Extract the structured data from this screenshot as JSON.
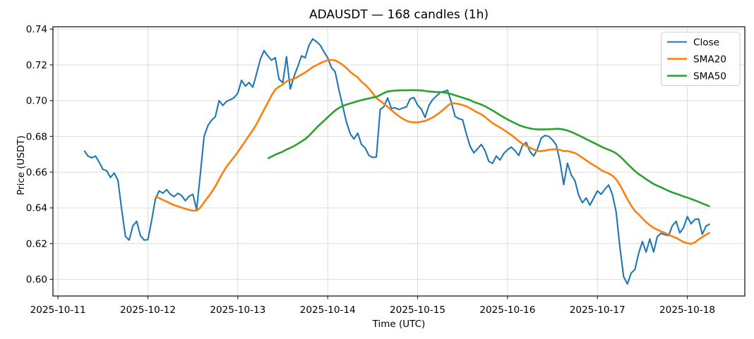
{
  "chart_data": {
    "type": "line",
    "title": "ADAUSDT — 168 candles (1h)",
    "xlabel": "Time (UTC)",
    "ylabel": "Price (USDT)",
    "symbol": "ADAUSDT",
    "candle_count": 168,
    "interval": "1h",
    "grid": true,
    "legend_position": "upper right",
    "x_start": "2025-10-11 07:00",
    "x_step_hours": 1,
    "x_tick_labels": [
      "2025-10-11",
      "2025-10-12",
      "2025-10-13",
      "2025-10-14",
      "2025-10-15",
      "2025-10-16",
      "2025-10-17",
      "2025-10-18"
    ],
    "x_ticks_hours": [
      -7,
      17,
      41,
      65,
      89,
      113,
      137,
      161
    ],
    "xlim_hours": [
      -8.35,
      176.35
    ],
    "y_tick_labels": [
      "0.60",
      "0.62",
      "0.64",
      "0.66",
      "0.68",
      "0.70",
      "0.72",
      "0.74"
    ],
    "y_ticks": [
      0.6,
      0.62,
      0.64,
      0.66,
      0.68,
      0.7,
      0.72,
      0.74
    ],
    "ylim": [
      0.5907,
      0.7413
    ],
    "style": {
      "background": "#ffffff",
      "grid_color": "#dcdcdc",
      "spine_color": "#2b2b2b",
      "text_color": "#000000",
      "legend_border": "#cccccc",
      "legend_bg": "#ffffff"
    },
    "series": [
      {
        "name": "Close",
        "color": "#1f77b4",
        "line_width": 2.1,
        "values": [
          0.672,
          0.669,
          0.668,
          0.669,
          0.6655,
          0.6615,
          0.6608,
          0.657,
          0.6595,
          0.6555,
          0.639,
          0.624,
          0.622,
          0.63,
          0.6325,
          0.6245,
          0.622,
          0.6222,
          0.633,
          0.645,
          0.6495,
          0.6482,
          0.6502,
          0.6476,
          0.6463,
          0.6482,
          0.6469,
          0.644,
          0.6465,
          0.6476,
          0.639,
          0.659,
          0.68,
          0.686,
          0.689,
          0.691,
          0.7,
          0.6973,
          0.6996,
          0.7005,
          0.7016,
          0.7042,
          0.7114,
          0.7081,
          0.7101,
          0.7075,
          0.715,
          0.723,
          0.728,
          0.725,
          0.7226,
          0.724,
          0.712,
          0.71,
          0.7246,
          0.7065,
          0.7135,
          0.719,
          0.725,
          0.724,
          0.731,
          0.7345,
          0.733,
          0.731,
          0.7273,
          0.724,
          0.7185,
          0.716,
          0.706,
          0.697,
          0.688,
          0.6815,
          0.6785,
          0.6818,
          0.6755,
          0.6735,
          0.6693,
          0.6682,
          0.6685,
          0.695,
          0.6966,
          0.7015,
          0.6956,
          0.696,
          0.695,
          0.6958,
          0.6965,
          0.701,
          0.7017,
          0.6975,
          0.6952,
          0.6906,
          0.6972,
          0.7005,
          0.7025,
          0.7045,
          0.7051,
          0.7058,
          0.699,
          0.6912,
          0.6899,
          0.6893,
          0.6815,
          0.6745,
          0.6708,
          0.673,
          0.6755,
          0.672,
          0.666,
          0.6649,
          0.669,
          0.6668,
          0.6704,
          0.6725,
          0.674,
          0.672,
          0.6693,
          0.675,
          0.6766,
          0.6715,
          0.669,
          0.673,
          0.679,
          0.6805,
          0.68,
          0.678,
          0.6752,
          0.666,
          0.653,
          0.665,
          0.6585,
          0.6552,
          0.647,
          0.6429,
          0.6456,
          0.6415,
          0.6455,
          0.6495,
          0.6476,
          0.6505,
          0.6528,
          0.6475,
          0.6377,
          0.618,
          0.6015,
          0.5975,
          0.6035,
          0.6055,
          0.6145,
          0.6212,
          0.6153,
          0.6226,
          0.6153,
          0.624,
          0.6258,
          0.625,
          0.6245,
          0.63,
          0.6325,
          0.626,
          0.629,
          0.6351,
          0.6311,
          0.6335,
          0.6338,
          0.6252,
          0.6298,
          0.631
        ]
      },
      {
        "name": "SMA20",
        "color": "#ff7f0e",
        "line_width": 2.6,
        "derived": "rolling_mean",
        "window": 20,
        "source": "Close"
      },
      {
        "name": "SMA50",
        "color": "#2ca02c",
        "line_width": 2.6,
        "derived": "rolling_mean",
        "window": 50,
        "source": "Close"
      }
    ]
  }
}
